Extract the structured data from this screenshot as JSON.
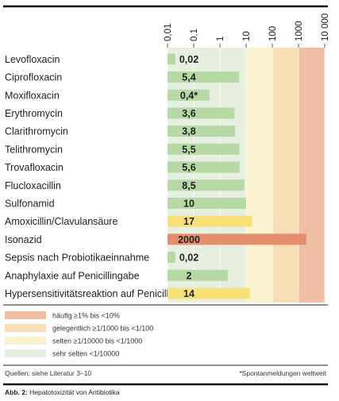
{
  "chart_data": {
    "type": "bar",
    "scale": "log",
    "xlim": [
      0.01,
      10000
    ],
    "ticks": [
      "0,01",
      "0,1",
      "1",
      "10",
      "100",
      "1000",
      "10 000"
    ],
    "tick_values": [
      0.01,
      0.1,
      1,
      10,
      100,
      1000,
      10000
    ],
    "bands": [
      {
        "from": 0.01,
        "to": 10,
        "color": "#e6efe0",
        "label": "sehr selten <1/10000"
      },
      {
        "from": 10,
        "to": 100,
        "color": "#fbf3cf",
        "label": "selten ≥1/10000 bis <1/1000"
      },
      {
        "from": 100,
        "to": 1000,
        "color": "#f8deb6",
        "label": "gelegentlich ≥1/1000 bis <1/100"
      },
      {
        "from": 1000,
        "to": 10000,
        "color": "#eebfa4",
        "label": "häufig ≥1% bis <10%"
      }
    ],
    "categories": [
      "Levofloxacin",
      "Ciprofloxacin",
      "Moxifloxacin",
      "Erythromycin",
      "Clarithromycin",
      "Telithromycin",
      "Trovafloxacin",
      "Flucloxacillin",
      "Sulfonamid",
      "Amoxicillin/Clavulansäure",
      "Isonazid",
      "Sepsis nach Probiotikaeinnahme",
      "Anaphylaxie auf Penicillingabe",
      "Hypersensitivitätsreaktion auf Penicillin"
    ],
    "values": [
      0.02,
      5.4,
      0.4,
      3.6,
      3.8,
      5.5,
      5.6,
      8.5,
      10,
      17,
      2000,
      0.02,
      2,
      14
    ],
    "value_labels": [
      "0,02",
      "5,4",
      "0,4*",
      "3,6",
      "3,8",
      "5,5",
      "5,6",
      "8,5",
      "10",
      "17",
      "2000",
      "0,02",
      "2",
      "14"
    ],
    "bar_colors": [
      "#b7d9a5",
      "#b7d9a5",
      "#b7d9a5",
      "#b7d9a5",
      "#b7d9a5",
      "#b7d9a5",
      "#b7d9a5",
      "#b7d9a5",
      "#b7d9a5",
      "#f9e17a",
      "#e58f6f",
      "#b7d9a5",
      "#b7d9a5",
      "#f9e17a"
    ]
  },
  "legend": [
    {
      "label": "häufig ≥1% bis <10%",
      "color": "#eebfa4"
    },
    {
      "label": "gelegentlich ≥1/1000 bis <1/100",
      "color": "#f8deb6"
    },
    {
      "label": "selten ≥1/10000 bis <1/1000",
      "color": "#fbf3cf"
    },
    {
      "label": "sehr selten <1/10000",
      "color": "#e6efe0"
    }
  ],
  "footer": {
    "sources": "Quellen: siehe Literatur 3–10",
    "note": "*Spontanmeldungen weltweit"
  },
  "caption": {
    "prefix": "Abb. 2:",
    "text": " Hepatotoxizität von Antibiotika"
  }
}
